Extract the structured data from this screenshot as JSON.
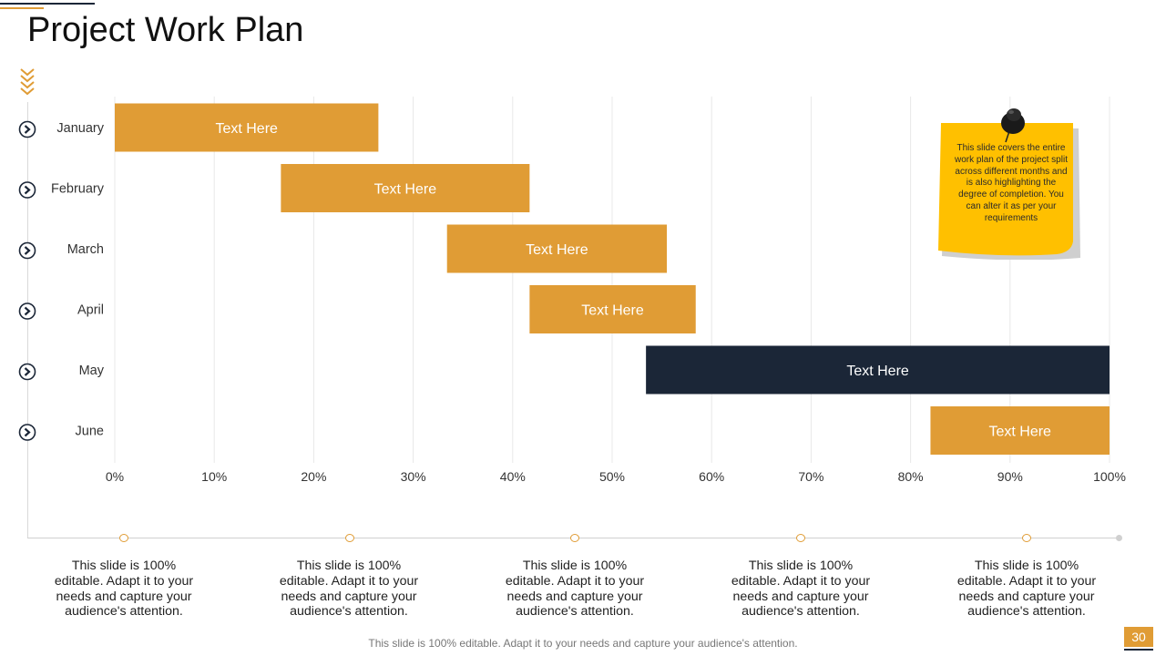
{
  "header": {
    "title": "Project Work Plan"
  },
  "colors": {
    "accent": "#E09C35",
    "dark": "#1B2637",
    "note": "#FFC000",
    "grid": "#E8E8E8"
  },
  "chart_data": {
    "type": "bar",
    "orientation": "horizontal",
    "style": "gantt",
    "categories": [
      "January",
      "February",
      "March",
      "April",
      "May",
      "June"
    ],
    "series": [
      {
        "name": "start",
        "values": [
          0,
          16.7,
          33.4,
          41.7,
          53.4,
          82
        ]
      },
      {
        "name": "end",
        "values": [
          26.5,
          41.7,
          55.5,
          58.4,
          100,
          100
        ]
      }
    ],
    "bar_labels": [
      "Text Here",
      "Text Here",
      "Text Here",
      "Text Here",
      "Text Here",
      "Text Here"
    ],
    "highlight_index": 4,
    "xticks": [
      "0%",
      "10%",
      "20%",
      "30%",
      "40%",
      "50%",
      "60%",
      "70%",
      "80%",
      "90%",
      "100%"
    ],
    "xlim": [
      0,
      100
    ],
    "grid": true,
    "title": "",
    "xlabel": "",
    "ylabel": ""
  },
  "note": {
    "text": "This slide covers the entire work plan of the project split across different months and is also highlighting the degree of completion. You can alter it as per your requirements",
    "icon": "pushpin-icon"
  },
  "timeline": {
    "items": [
      "This slide is 100% editable. Adapt it to your needs and capture your audience's attention.",
      "This slide is 100% editable. Adapt it to your needs and capture your audience's attention.",
      "This slide is 100% editable. Adapt it to your needs and capture your audience's attention.",
      "This slide is 100% editable. Adapt it to your needs and capture your audience's attention.",
      "This slide is 100% editable. Adapt it to your needs and capture your audience's attention."
    ]
  },
  "footer": {
    "text": "This slide is 100% editable. Adapt it to your needs and capture your audience's attention."
  },
  "page": {
    "number": "30"
  }
}
